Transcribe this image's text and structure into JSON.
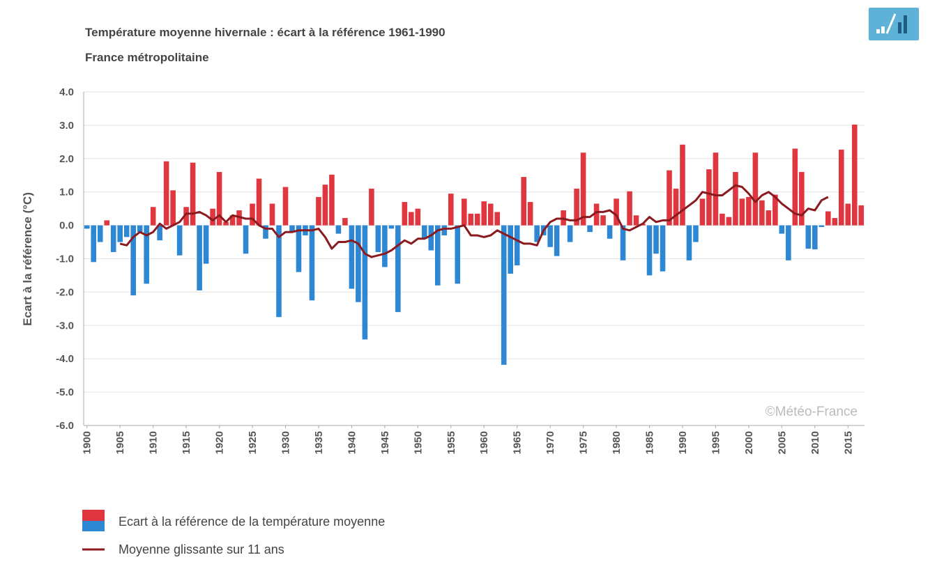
{
  "chart_data": {
    "type": "bar-line",
    "title": "Température moyenne hivernale : écart à la référence 1961-1990",
    "subtitle": "France métropolitaine",
    "y_label": "Ecart à la référence (°C)",
    "watermark": "©Météo-France",
    "x": [
      1900,
      1901,
      1902,
      1903,
      1904,
      1905,
      1906,
      1907,
      1908,
      1909,
      1910,
      1911,
      1912,
      1913,
      1914,
      1915,
      1916,
      1917,
      1918,
      1919,
      1920,
      1921,
      1922,
      1923,
      1924,
      1925,
      1926,
      1927,
      1928,
      1929,
      1930,
      1931,
      1932,
      1933,
      1934,
      1935,
      1936,
      1937,
      1938,
      1939,
      1940,
      1941,
      1942,
      1943,
      1944,
      1945,
      1946,
      1947,
      1948,
      1949,
      1950,
      1951,
      1952,
      1953,
      1954,
      1955,
      1956,
      1957,
      1958,
      1959,
      1960,
      1961,
      1962,
      1963,
      1964,
      1965,
      1966,
      1967,
      1968,
      1969,
      1970,
      1971,
      1972,
      1973,
      1974,
      1975,
      1976,
      1977,
      1978,
      1979,
      1980,
      1981,
      1982,
      1983,
      1984,
      1985,
      1986,
      1987,
      1988,
      1989,
      1990,
      1991,
      1992,
      1993,
      1994,
      1995,
      1996,
      1997,
      1998,
      1999,
      2000,
      2001,
      2002,
      2003,
      2004,
      2005,
      2006,
      2007,
      2008,
      2009,
      2010,
      2011,
      2012,
      2013,
      2014,
      2015,
      2016,
      2017
    ],
    "series": [
      {
        "name": "Ecart à la référence de la température moyenne",
        "positive_color": "#e0363f",
        "negative_color": "#2d87d2",
        "values": [
          -0.1,
          -1.1,
          -0.5,
          0.15,
          -0.8,
          -0.5,
          -0.35,
          -2.1,
          -0.2,
          -1.75,
          0.55,
          -0.45,
          1.92,
          1.05,
          -0.9,
          0.55,
          1.88,
          -1.95,
          -1.15,
          0.5,
          1.6,
          0.1,
          0.3,
          0.45,
          -0.85,
          0.65,
          1.4,
          -0.4,
          0.65,
          -2.75,
          1.15,
          -0.2,
          -1.4,
          -0.3,
          -2.25,
          0.85,
          1.22,
          1.52,
          -0.25,
          0.22,
          -1.9,
          -2.3,
          -3.42,
          1.1,
          -0.8,
          -1.25,
          -0.1,
          -2.6,
          0.7,
          0.4,
          0.5,
          -0.4,
          -0.75,
          -1.8,
          -0.3,
          0.95,
          -1.75,
          0.8,
          0.35,
          0.35,
          0.72,
          0.65,
          0.4,
          -4.18,
          -1.45,
          -1.2,
          1.45,
          0.7,
          -0.5,
          -0.3,
          -0.65,
          -0.92,
          0.45,
          -0.5,
          1.1,
          2.18,
          -0.2,
          0.65,
          0.3,
          -0.4,
          0.8,
          -1.05,
          1.02,
          0.3,
          0.05,
          -1.5,
          -0.85,
          -1.38,
          1.65,
          1.1,
          2.42,
          -1.05,
          -0.5,
          0.8,
          1.68,
          2.18,
          0.35,
          0.25,
          1.6,
          0.8,
          0.85,
          2.18,
          0.75,
          0.45,
          0.92,
          -0.25,
          -1.05,
          2.3,
          1.6,
          -0.7,
          -0.72,
          -0.05,
          0.42,
          0.22,
          2.27,
          0.65,
          3.02,
          0.6
        ]
      },
      {
        "name": "Moyenne glissante sur 11 ans",
        "color": "#8b1a1f",
        "values": [
          null,
          null,
          null,
          null,
          null,
          -0.55,
          -0.6,
          -0.35,
          -0.2,
          -0.3,
          -0.2,
          0.05,
          -0.1,
          0.0,
          0.1,
          0.35,
          0.35,
          0.4,
          0.3,
          0.15,
          0.3,
          0.1,
          0.3,
          0.25,
          0.2,
          0.2,
          0.0,
          -0.1,
          -0.1,
          -0.35,
          -0.2,
          -0.2,
          -0.15,
          -0.15,
          -0.15,
          -0.1,
          -0.35,
          -0.7,
          -0.5,
          -0.5,
          -0.45,
          -0.55,
          -0.85,
          -0.95,
          -0.9,
          -0.85,
          -0.75,
          -0.6,
          -0.45,
          -0.55,
          -0.4,
          -0.4,
          -0.3,
          -0.15,
          -0.1,
          -0.1,
          -0.05,
          0.0,
          -0.3,
          -0.3,
          -0.35,
          -0.3,
          -0.15,
          -0.25,
          -0.35,
          -0.45,
          -0.55,
          -0.55,
          -0.6,
          -0.15,
          0.1,
          0.2,
          0.2,
          0.15,
          0.15,
          0.25,
          0.25,
          0.4,
          0.4,
          0.45,
          0.3,
          -0.1,
          -0.15,
          -0.05,
          0.05,
          0.25,
          0.1,
          0.15,
          0.15,
          0.3,
          0.45,
          0.6,
          0.75,
          1.0,
          0.95,
          0.9,
          0.9,
          1.05,
          1.2,
          1.15,
          0.95,
          0.7,
          0.9,
          1.0,
          0.85,
          0.65,
          0.5,
          0.35,
          0.3,
          0.5,
          0.45,
          0.75,
          0.85,
          null,
          null,
          null,
          null,
          null
        ]
      }
    ],
    "xlim": [
      1899.5,
      2017.5
    ],
    "xticks": [
      1900,
      1905,
      1910,
      1915,
      1920,
      1925,
      1930,
      1935,
      1940,
      1945,
      1950,
      1955,
      1960,
      1965,
      1970,
      1975,
      1980,
      1985,
      1990,
      1995,
      2000,
      2005,
      2010,
      2015
    ],
    "ylim": [
      -6,
      4
    ],
    "yticks": [
      {
        "value": -6,
        "label": "-6.0"
      },
      {
        "value": -5,
        "label": "-5.0"
      },
      {
        "value": -4,
        "label": "-4.0"
      },
      {
        "value": -3,
        "label": "-3.0"
      },
      {
        "value": -2,
        "label": "-2.0"
      },
      {
        "value": -1,
        "label": "-1.0"
      },
      {
        "value": 0,
        "label": "0.0"
      },
      {
        "value": 1,
        "label": "1.0"
      },
      {
        "value": 2,
        "label": "2.0"
      },
      {
        "value": 3,
        "label": "3.0"
      },
      {
        "value": 4,
        "label": "4.0"
      }
    ],
    "grid": true
  }
}
